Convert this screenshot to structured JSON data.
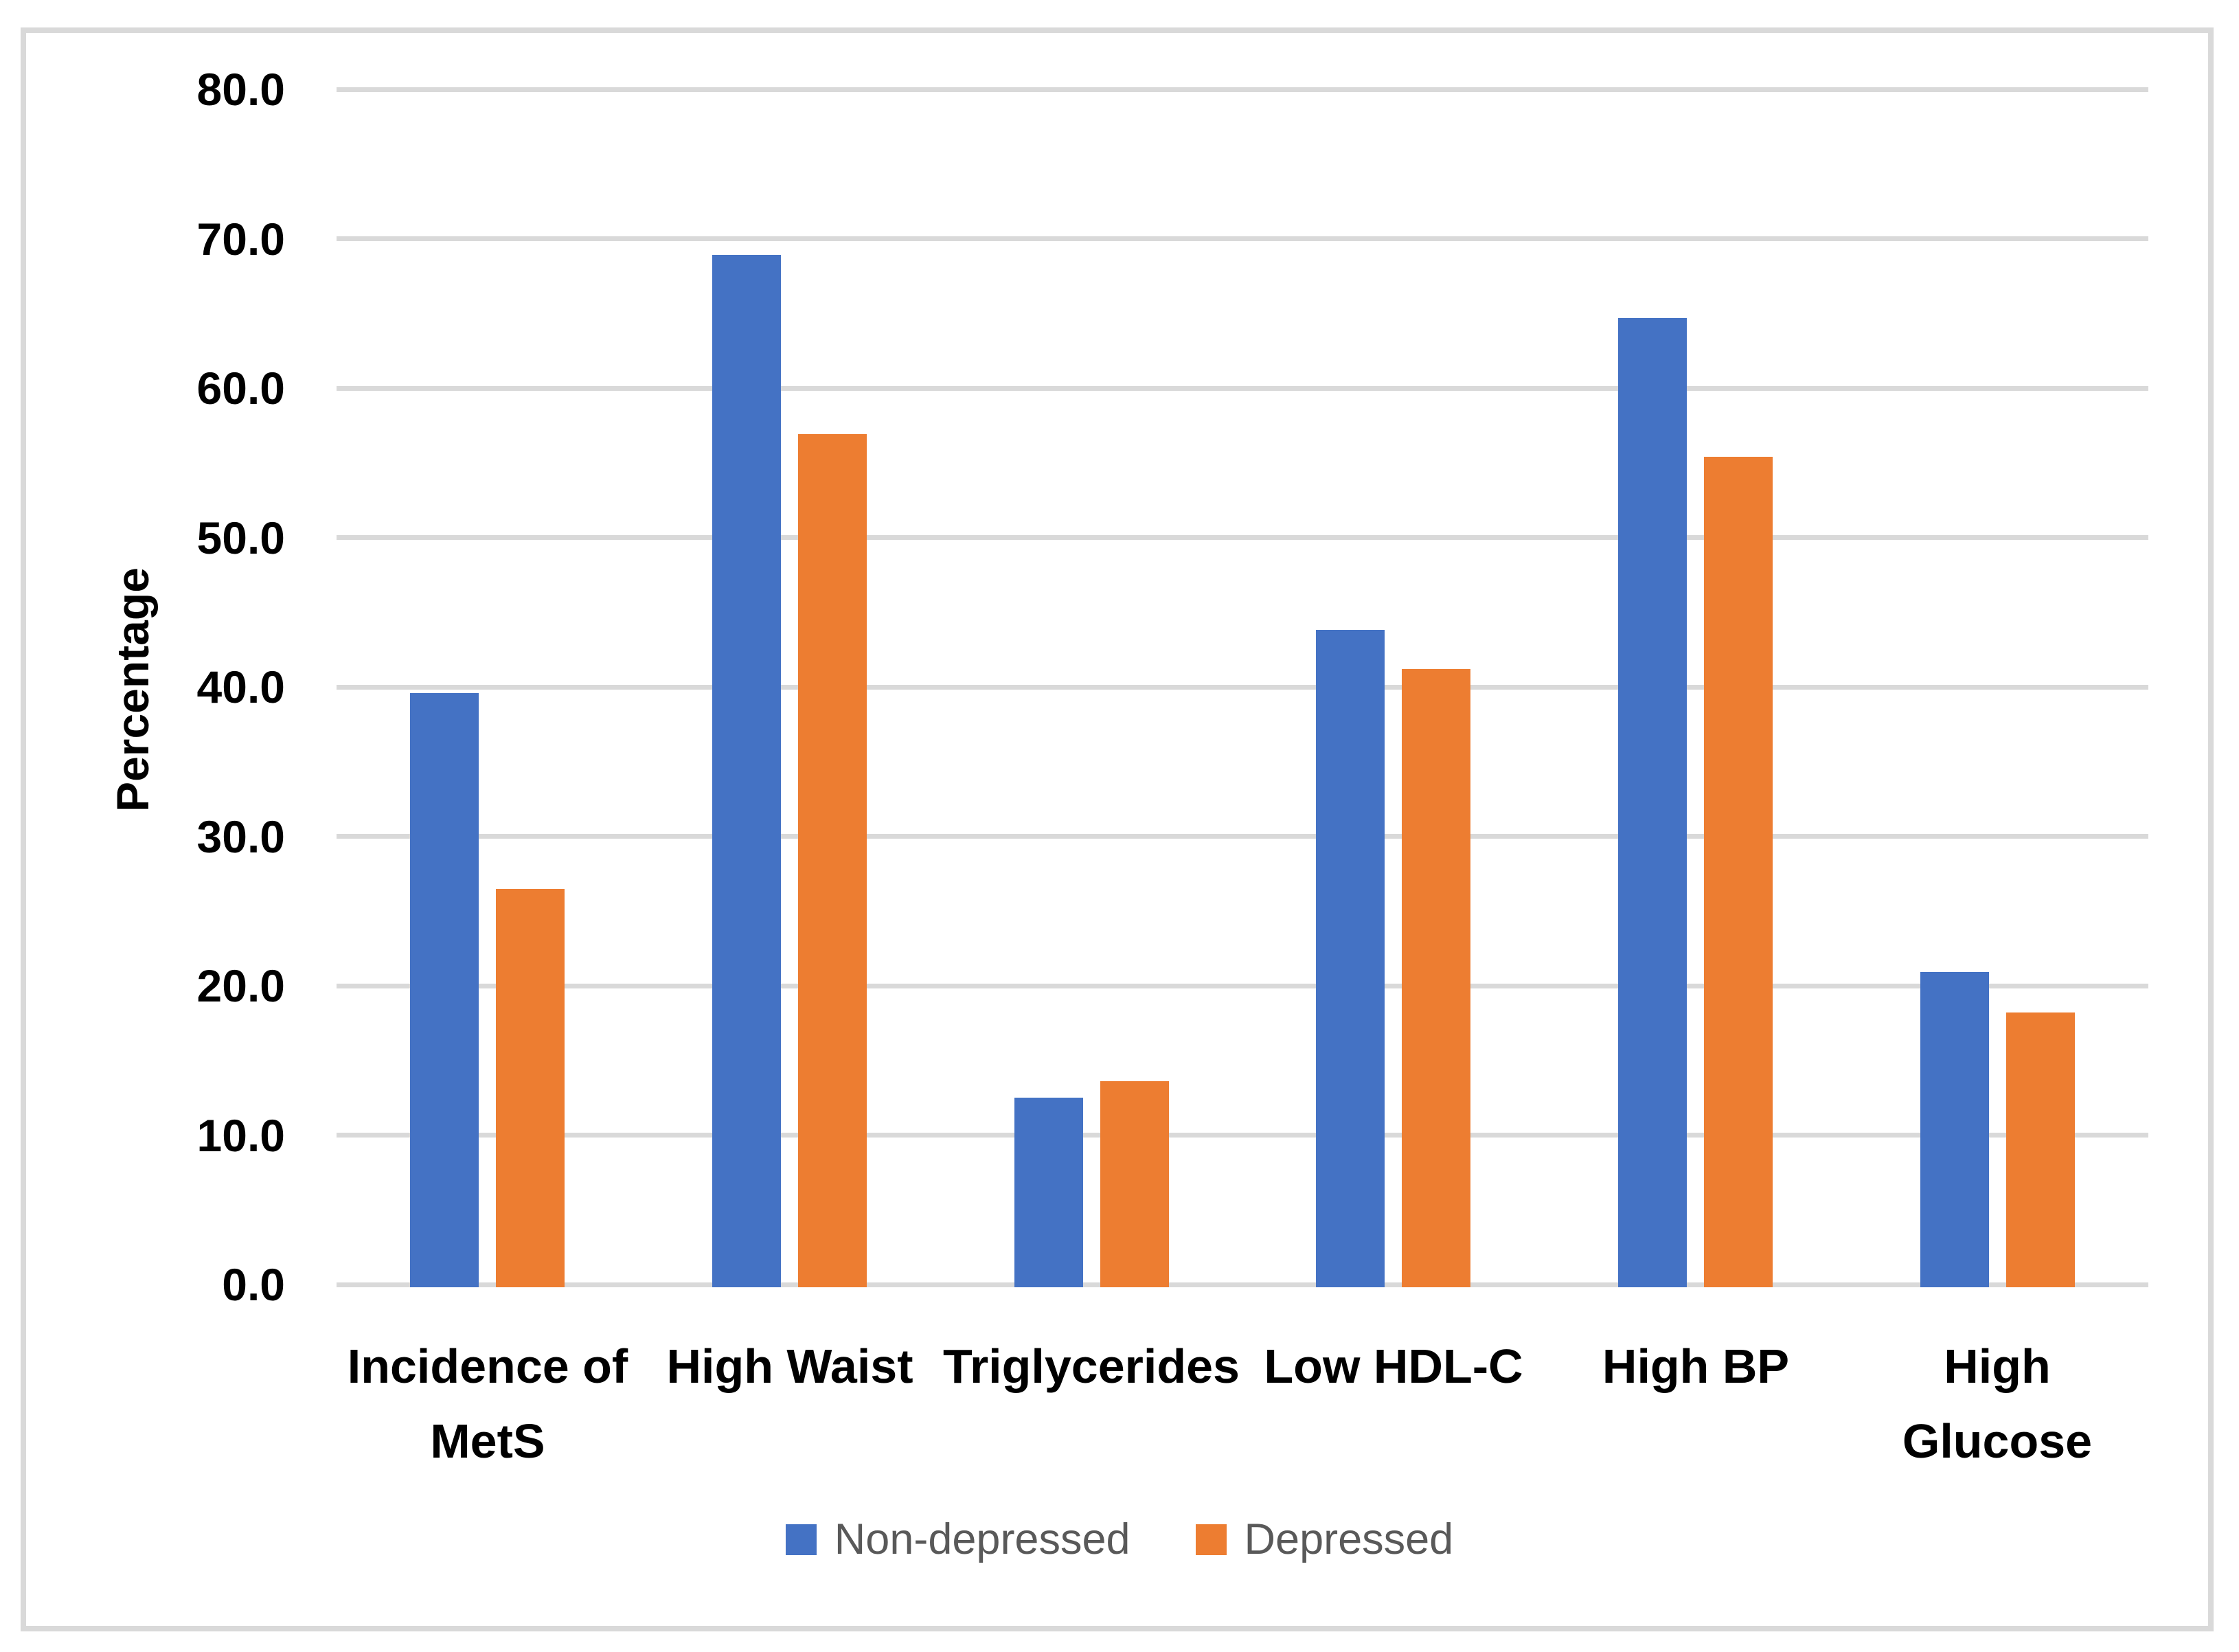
{
  "figure": {
    "background": "#FFFFFF",
    "border_color": "#D9D9D9",
    "gridline_color": "#D9D9D9",
    "text_color": "#000000",
    "legend_text_color": "#595959"
  },
  "chart_data": {
    "type": "bar",
    "title": "",
    "xlabel": "",
    "ylabel": "Percentage",
    "ylim": [
      0,
      80
    ],
    "ytick_step": 10,
    "ytick_labels": [
      "0.0",
      "10.0",
      "20.0",
      "30.0",
      "40.0",
      "50.0",
      "60.0",
      "70.0",
      "80.0"
    ],
    "grid": true,
    "legend_position": "bottom",
    "categories": [
      {
        "label": "Incidence of MetS",
        "lines": [
          "Incidence of",
          "MetS"
        ]
      },
      {
        "label": "High Waist",
        "lines": [
          "High Waist"
        ]
      },
      {
        "label": "Triglycerides",
        "lines": [
          "Triglycerides"
        ]
      },
      {
        "label": "Low HDL-C",
        "lines": [
          "Low HDL-C"
        ]
      },
      {
        "label": "High BP",
        "lines": [
          "High BP"
        ]
      },
      {
        "label": "High Glucose",
        "lines": [
          "High",
          "Glucose"
        ]
      }
    ],
    "series": [
      {
        "name": "Non-depressed",
        "color": "#4472C4",
        "values": [
          39.6,
          68.9,
          12.5,
          43.8,
          64.7,
          20.9
        ]
      },
      {
        "name": "Depressed",
        "color": "#ED7D31",
        "values": [
          26.5,
          56.9,
          13.6,
          41.2,
          55.4,
          18.2
        ]
      }
    ]
  }
}
